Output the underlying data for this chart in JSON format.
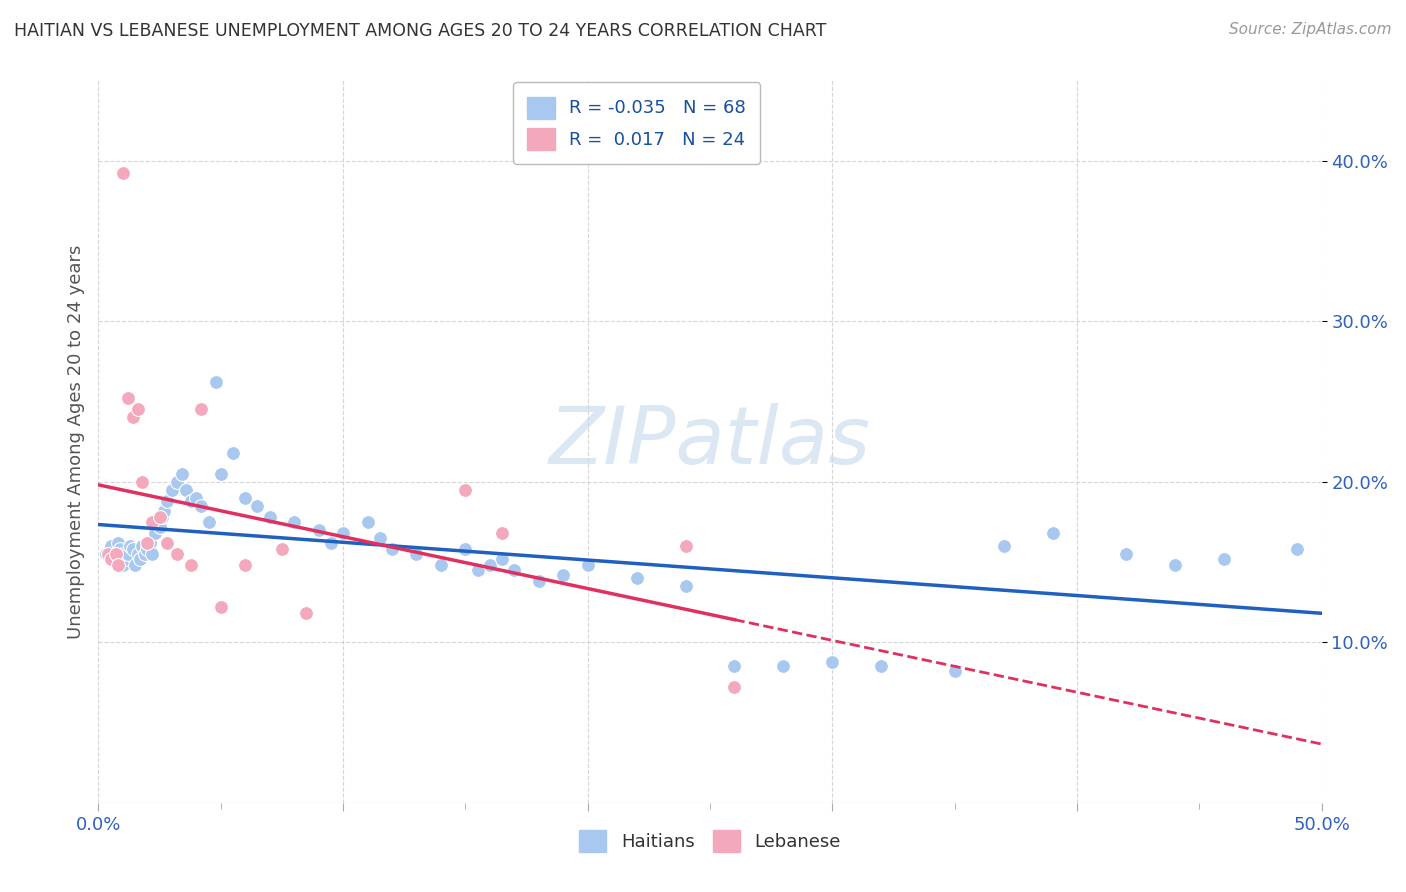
{
  "title": "HAITIAN VS LEBANESE UNEMPLOYMENT AMONG AGES 20 TO 24 YEARS CORRELATION CHART",
  "source": "Source: ZipAtlas.com",
  "ylabel": "Unemployment Among Ages 20 to 24 years",
  "xlim": [
    0.0,
    0.5
  ],
  "ylim": [
    0.0,
    0.45
  ],
  "haitian_color": "#A8C8F0",
  "lebanese_color": "#F4A8BC",
  "haitian_R": -0.035,
  "haitian_N": 68,
  "lebanese_R": 0.017,
  "lebanese_N": 24,
  "background_color": "#FFFFFF",
  "grid_color": "#CCCCCC",
  "watermark": "ZIPatlas",
  "haitian_line_color": "#2060C0",
  "lebanese_line_color": "#E03060",
  "tick_color": "#3060C0",
  "title_color": "#333333",
  "source_color": "#999999",
  "ylabel_color": "#555555",
  "haitian_x": [
    0.003,
    0.005,
    0.007,
    0.008,
    0.009,
    0.01,
    0.01,
    0.011,
    0.012,
    0.013,
    0.014,
    0.015,
    0.016,
    0.017,
    0.018,
    0.019,
    0.02,
    0.021,
    0.022,
    0.023,
    0.025,
    0.026,
    0.027,
    0.028,
    0.03,
    0.032,
    0.034,
    0.036,
    0.038,
    0.04,
    0.042,
    0.045,
    0.048,
    0.05,
    0.055,
    0.06,
    0.065,
    0.07,
    0.08,
    0.09,
    0.095,
    0.1,
    0.11,
    0.115,
    0.12,
    0.13,
    0.14,
    0.15,
    0.155,
    0.16,
    0.165,
    0.17,
    0.18,
    0.19,
    0.2,
    0.22,
    0.24,
    0.26,
    0.28,
    0.3,
    0.32,
    0.35,
    0.37,
    0.39,
    0.42,
    0.44,
    0.46,
    0.49
  ],
  "haitian_y": [
    0.155,
    0.16,
    0.15,
    0.162,
    0.158,
    0.155,
    0.148,
    0.152,
    0.155,
    0.16,
    0.158,
    0.148,
    0.155,
    0.152,
    0.16,
    0.155,
    0.158,
    0.162,
    0.155,
    0.168,
    0.172,
    0.178,
    0.182,
    0.188,
    0.195,
    0.2,
    0.205,
    0.195,
    0.188,
    0.19,
    0.185,
    0.175,
    0.262,
    0.205,
    0.218,
    0.19,
    0.185,
    0.178,
    0.175,
    0.17,
    0.162,
    0.168,
    0.175,
    0.165,
    0.158,
    0.155,
    0.148,
    0.158,
    0.145,
    0.148,
    0.152,
    0.145,
    0.138,
    0.142,
    0.148,
    0.14,
    0.135,
    0.085,
    0.085,
    0.088,
    0.085,
    0.082,
    0.16,
    0.168,
    0.155,
    0.148,
    0.152,
    0.158
  ],
  "lebanese_x": [
    0.004,
    0.005,
    0.007,
    0.008,
    0.01,
    0.012,
    0.014,
    0.016,
    0.018,
    0.02,
    0.022,
    0.025,
    0.028,
    0.032,
    0.038,
    0.042,
    0.05,
    0.06,
    0.075,
    0.085,
    0.15,
    0.165,
    0.24,
    0.26
  ],
  "lebanese_y": [
    0.155,
    0.152,
    0.155,
    0.148,
    0.392,
    0.252,
    0.24,
    0.245,
    0.2,
    0.162,
    0.175,
    0.178,
    0.162,
    0.155,
    0.148,
    0.245,
    0.122,
    0.148,
    0.158,
    0.118,
    0.195,
    0.168,
    0.16,
    0.072
  ]
}
